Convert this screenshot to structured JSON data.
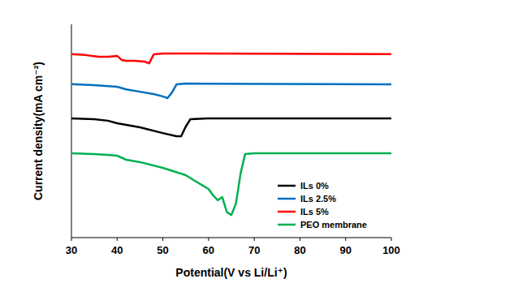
{
  "chart_data": {
    "type": "line",
    "x_label": "Potential(V vs Li/Li⁺)",
    "y_label": "Current density(mA cm⁻²)",
    "xlim": [
      30,
      100
    ],
    "xticks": [
      30,
      40,
      50,
      60,
      70,
      80,
      90,
      100
    ],
    "ylim": [
      0,
      100
    ],
    "yticks": [],
    "tick_labels": "x",
    "grid": false,
    "legend": "lower right",
    "series": [
      {
        "name": "ILs 0%",
        "color": "#000000",
        "x": [
          30,
          35,
          38,
          40,
          45,
          50,
          53,
          54,
          55,
          56,
          60,
          100
        ],
        "values": [
          55.9,
          55.5,
          54.8,
          53.6,
          51.7,
          49,
          47.5,
          47.5,
          52,
          55.5,
          55.9,
          55.9
        ]
      },
      {
        "name": "ILs 2.5%",
        "color": "#0070c0",
        "x": [
          30,
          35,
          40,
          42,
          45,
          48,
          50,
          51,
          52,
          53,
          55,
          100
        ],
        "values": [
          72,
          71.5,
          70.7,
          69.5,
          68.4,
          67.3,
          66.2,
          65.4,
          68,
          71.9,
          72.2,
          71.9
        ]
      },
      {
        "name": "ILs 5%",
        "color": "#ff0000",
        "x": [
          30,
          33,
          36,
          38,
          40,
          41,
          42,
          44,
          46,
          47,
          48,
          50,
          60,
          100
        ],
        "values": [
          86,
          85.6,
          84.8,
          84.8,
          85.2,
          83.3,
          82.9,
          82.9,
          82.5,
          81.7,
          85.9,
          86.3,
          86.3,
          86
        ]
      },
      {
        "name": "PEO membrane",
        "color": "#00b050",
        "x": [
          30,
          35,
          38,
          40,
          42,
          45,
          50,
          55,
          57,
          60,
          61,
          62,
          63,
          64,
          65,
          66,
          67,
          68,
          70,
          100
        ],
        "values": [
          39.5,
          39.2,
          38.8,
          38.4,
          36.5,
          35.4,
          32.7,
          29.3,
          26.6,
          22.8,
          19.8,
          17.5,
          19,
          12,
          10.6,
          16,
          30,
          39.2,
          39.5,
          39.5
        ]
      }
    ]
  }
}
